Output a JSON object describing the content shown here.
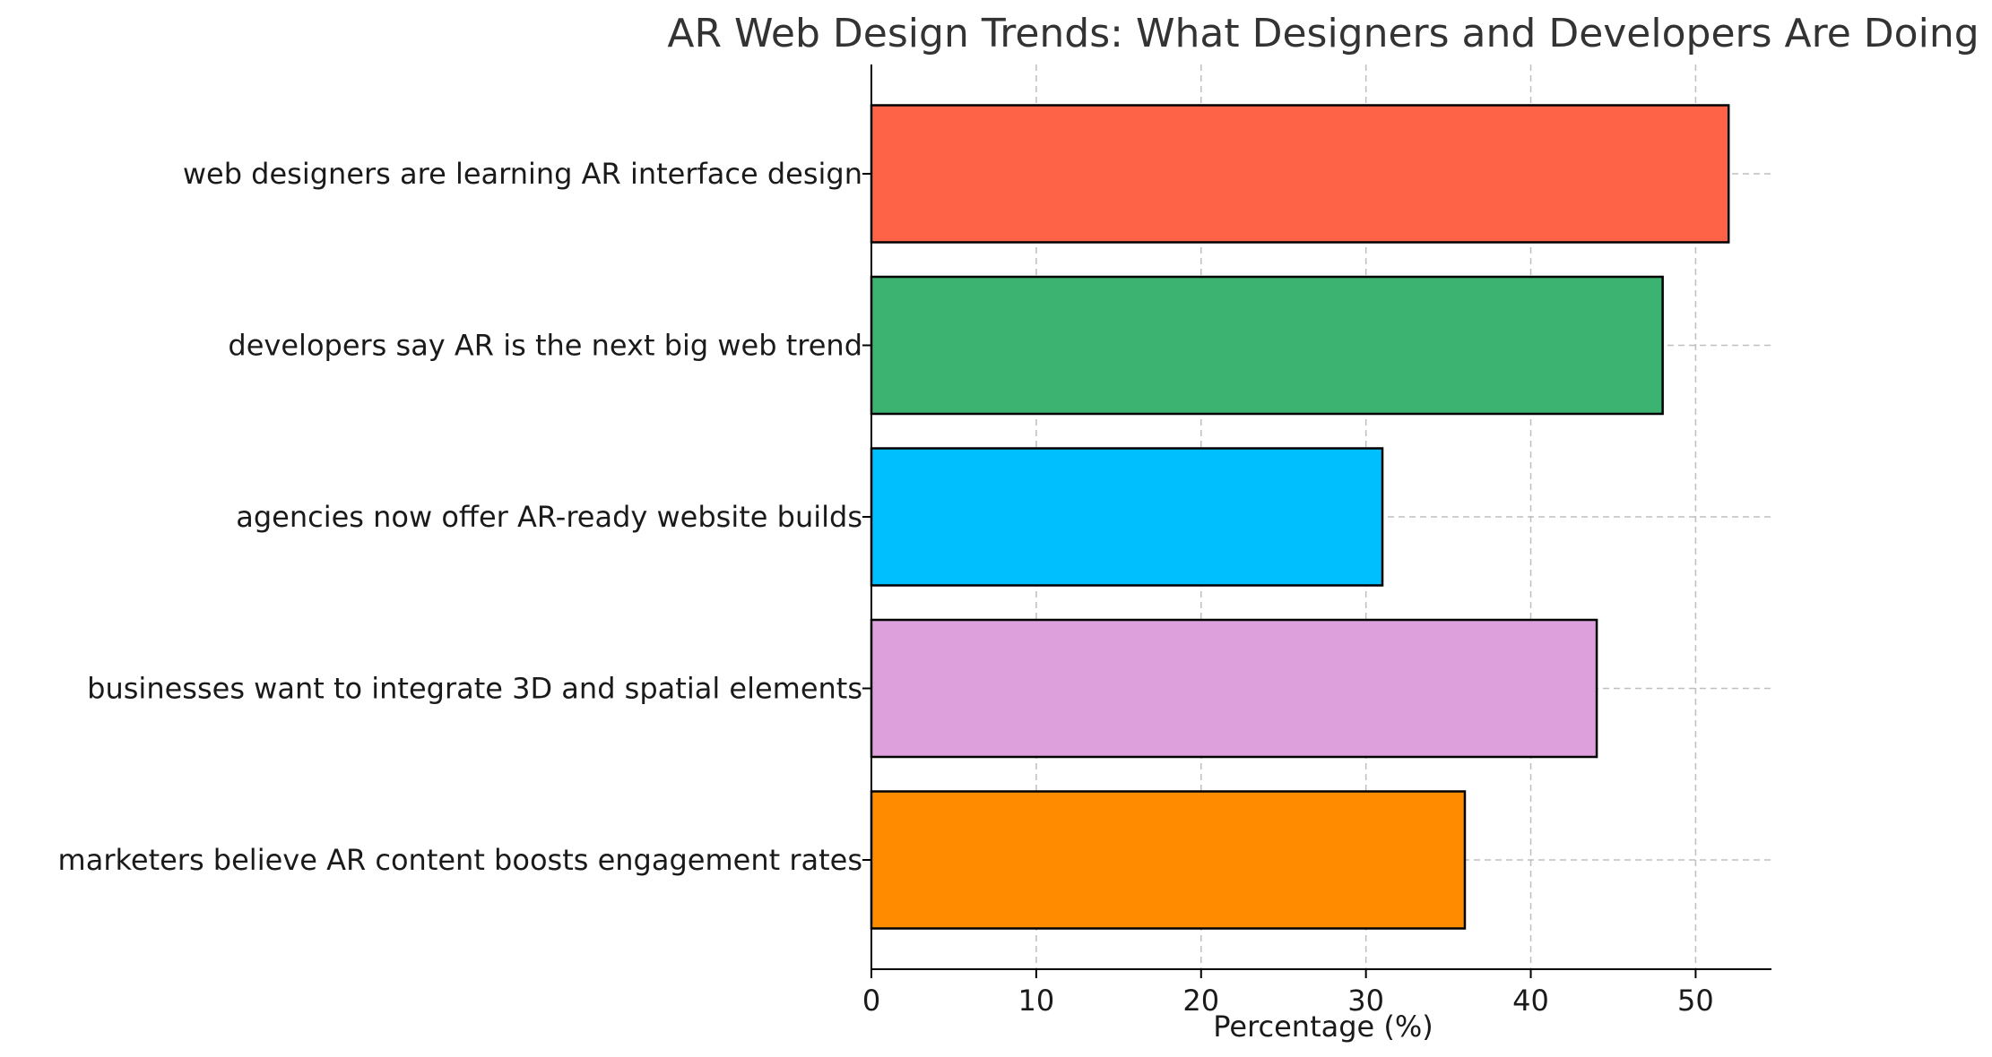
{
  "chart_data": {
    "type": "bar",
    "orientation": "horizontal",
    "title": "AR Web Design Trends: What Designers and Developers Are Doing",
    "xlabel": "Percentage (%)",
    "ylabel": "",
    "xlim": [
      0,
      54.6
    ],
    "xticks": [
      0,
      10,
      20,
      30,
      40,
      50
    ],
    "grid": true,
    "categories": [
      "web designers are learning AR interface design",
      "developers say AR is the next big web trend",
      "agencies now offer AR-ready website builds",
      "businesses want to integrate 3D and spatial elements",
      "marketers believe AR content boosts engagement rates"
    ],
    "values": [
      52,
      48,
      31,
      44,
      36
    ],
    "colors": [
      "#ff6347",
      "#3cb371",
      "#00bfff",
      "#dda0dd",
      "#ff8c00"
    ]
  }
}
